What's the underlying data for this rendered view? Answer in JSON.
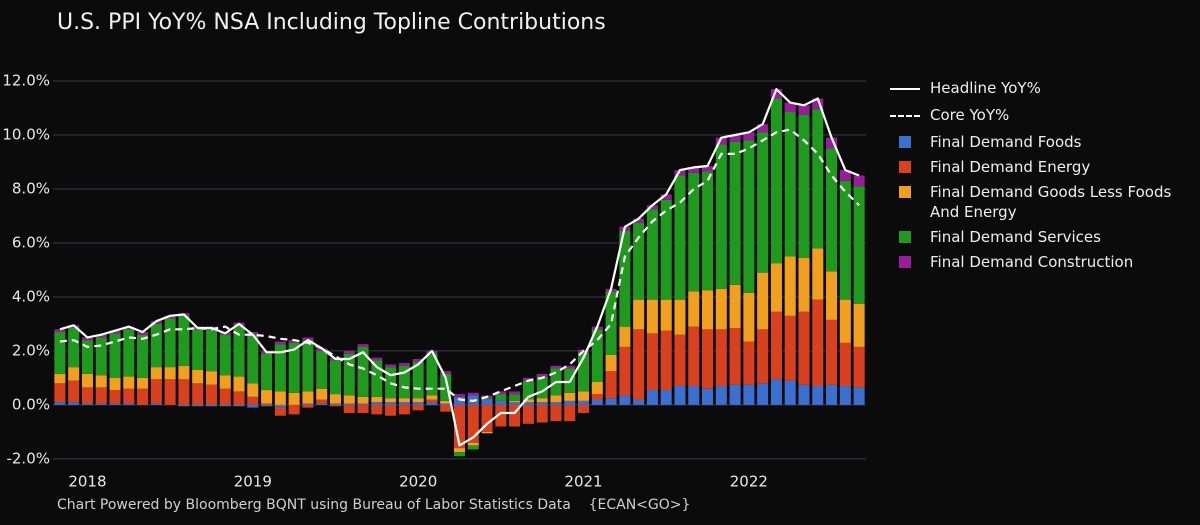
{
  "chart_data": {
    "type": "bar",
    "title": "U.S. PPI YoY% NSA Including Topline Contributions",
    "footer": "Chart Powered by Bloomberg BQNT using Bureau of Labor Statistics Data    {ECAN<GO>}",
    "categories": [
      null,
      null,
      "2018",
      null,
      null,
      null,
      null,
      null,
      null,
      null,
      null,
      null,
      null,
      null,
      "2019",
      null,
      null,
      null,
      null,
      null,
      null,
      null,
      null,
      null,
      null,
      null,
      "2020",
      null,
      null,
      null,
      null,
      null,
      null,
      null,
      null,
      null,
      null,
      null,
      "2021",
      null,
      null,
      null,
      null,
      null,
      null,
      null,
      null,
      null,
      null,
      null,
      "2022",
      null,
      null,
      null,
      null,
      null,
      null,
      null,
      null
    ],
    "ylim": [
      -2.3,
      12.6
    ],
    "yticks": [
      {
        "value": -2,
        "label": "-2.0%"
      },
      {
        "value": 0,
        "label": "0.0%"
      },
      {
        "value": 2,
        "label": "2.0%"
      },
      {
        "value": 4,
        "label": "4.0%"
      },
      {
        "value": 6,
        "label": "6.0%"
      },
      {
        "value": 8,
        "label": "8.0%"
      },
      {
        "value": 10,
        "label": "10.0%"
      },
      {
        "value": 12,
        "label": "12.0%"
      }
    ],
    "grid": true,
    "legend": "right",
    "series": [
      {
        "name": "Headline YoY%",
        "type": "line",
        "color": "#ffffff",
        "dash": false,
        "values": [
          2.8,
          2.95,
          2.5,
          2.6,
          2.75,
          2.9,
          2.7,
          3.1,
          3.3,
          3.35,
          2.85,
          2.85,
          2.65,
          3.0,
          2.6,
          1.95,
          1.95,
          2.05,
          2.4,
          2.1,
          1.7,
          1.7,
          1.95,
          1.4,
          1.1,
          1.2,
          1.5,
          2.0,
          1.0,
          -1.5,
          -1.2,
          -0.7,
          -0.3,
          -0.3,
          0.3,
          0.5,
          0.85,
          0.85,
          1.75,
          2.9,
          4.3,
          6.6,
          6.9,
          7.4,
          7.8,
          8.7,
          8.8,
          8.85,
          9.9,
          10.0,
          10.1,
          10.4,
          11.7,
          11.2,
          11.1,
          11.35,
          9.9,
          8.7,
          8.5
        ]
      },
      {
        "name": "Core YoY%",
        "type": "line",
        "color": "#ffffff",
        "dash": true,
        "values": [
          2.35,
          2.4,
          2.15,
          2.2,
          2.35,
          2.5,
          2.45,
          2.6,
          2.8,
          2.8,
          2.85,
          2.8,
          2.9,
          2.6,
          2.6,
          2.55,
          2.45,
          2.4,
          2.3,
          2.1,
          1.8,
          1.5,
          1.35,
          1.1,
          0.8,
          0.65,
          0.6,
          0.6,
          0.6,
          0.2,
          0.15,
          0.3,
          0.5,
          0.7,
          0.9,
          1.0,
          1.2,
          1.5,
          2.0,
          2.4,
          3.0,
          5.5,
          6.2,
          6.8,
          7.2,
          7.5,
          8.0,
          8.3,
          9.3,
          9.3,
          9.5,
          9.8,
          10.1,
          10.2,
          9.8,
          9.3,
          8.5,
          7.9,
          7.4
        ]
      },
      {
        "name": "Final Demand Foods",
        "type": "bar",
        "color": "#3b6fd0",
        "values": [
          0.1,
          0.1,
          0.05,
          0.05,
          0.05,
          0.05,
          0,
          0.05,
          0,
          -0.05,
          -0.05,
          -0.05,
          -0.05,
          -0.05,
          -0.1,
          -0.05,
          -0.1,
          0,
          0.05,
          0.05,
          0.05,
          0.05,
          0.05,
          0.1,
          0.1,
          0.1,
          0.1,
          0.1,
          0.05,
          0.3,
          0.35,
          0.2,
          0.15,
          0.1,
          0.1,
          0.1,
          0.1,
          0.15,
          0.15,
          0.2,
          0.25,
          0.35,
          0.2,
          0.55,
          0.55,
          0.7,
          0.7,
          0.6,
          0.7,
          0.75,
          0.75,
          0.8,
          0.95,
          0.9,
          0.75,
          0.7,
          0.75,
          0.7,
          0.65
        ]
      },
      {
        "name": "Final Demand Energy",
        "type": "bar",
        "color": "#d9411e",
        "values": [
          0.7,
          0.8,
          0.6,
          0.6,
          0.5,
          0.55,
          0.6,
          0.9,
          0.95,
          0.95,
          0.8,
          0.75,
          0.6,
          0.5,
          0.3,
          0.05,
          -0.3,
          -0.35,
          -0.1,
          0.15,
          -0.05,
          -0.3,
          -0.3,
          -0.35,
          -0.4,
          -0.35,
          -0.2,
          0.1,
          -0.25,
          -1.6,
          -1.4,
          -1.0,
          -0.8,
          -0.8,
          -0.7,
          -0.65,
          -0.6,
          -0.6,
          -0.3,
          0.2,
          1.0,
          1.8,
          2.6,
          2.1,
          2.2,
          1.9,
          2.2,
          2.2,
          2.1,
          2.1,
          1.6,
          2.0,
          2.5,
          2.4,
          2.7,
          3.2,
          2.4,
          1.6,
          1.5
        ]
      },
      {
        "name": "Final Demand Goods Less Foods And Energy",
        "type": "bar",
        "color": "#f0a01e",
        "values": [
          0.35,
          0.5,
          0.5,
          0.45,
          0.45,
          0.45,
          0.4,
          0.45,
          0.45,
          0.5,
          0.5,
          0.5,
          0.5,
          0.55,
          0.5,
          0.5,
          0.5,
          0.45,
          0.45,
          0.4,
          0.35,
          0.3,
          0.25,
          0.2,
          0.15,
          0.15,
          0.15,
          0.15,
          0.1,
          -0.15,
          -0.1,
          -0.05,
          0,
          0.05,
          0.1,
          0.15,
          0.25,
          0.3,
          0.35,
          0.45,
          0.6,
          0.75,
          1.1,
          1.25,
          1.15,
          1.3,
          1.3,
          1.45,
          1.5,
          1.6,
          1.8,
          2.1,
          1.8,
          2.2,
          2.0,
          1.9,
          1.8,
          1.6,
          1.6
        ]
      },
      {
        "name": "Final Demand Services",
        "type": "bar",
        "color": "#1f9a1f",
        "values": [
          1.55,
          1.45,
          1.25,
          1.4,
          1.65,
          1.75,
          1.6,
          1.6,
          1.8,
          1.85,
          1.5,
          1.55,
          1.5,
          1.9,
          1.8,
          1.35,
          1.75,
          1.85,
          1.9,
          1.4,
          1.25,
          1.55,
          1.85,
          1.35,
          1.15,
          1.2,
          1.35,
          1.55,
          1.0,
          -0.15,
          -0.15,
          0.05,
          0.25,
          0.25,
          0.7,
          0.8,
          1.0,
          0.9,
          1.45,
          1.95,
          2.35,
          3.55,
          2.85,
          3.35,
          3.7,
          4.6,
          4.4,
          4.4,
          5.35,
          5.3,
          5.65,
          5.2,
          6.1,
          5.35,
          5.3,
          5.15,
          4.55,
          4.4,
          4.35
        ]
      },
      {
        "name": "Final Demand Construction",
        "type": "bar",
        "color": "#9a1c9a",
        "values": [
          0.1,
          0.1,
          0.1,
          0.1,
          0.1,
          0.1,
          0.1,
          0.1,
          0.1,
          0.1,
          0.1,
          0.1,
          0.1,
          0.1,
          0.1,
          0.1,
          0.1,
          0.1,
          0.1,
          0.1,
          0.1,
          0.1,
          0.1,
          0.1,
          0.1,
          0.1,
          0.1,
          0.1,
          0.1,
          0.1,
          0.1,
          0.1,
          0.1,
          0.1,
          0.1,
          0.1,
          0.1,
          0.1,
          0.1,
          0.1,
          0.1,
          0.15,
          0.15,
          0.15,
          0.2,
          0.2,
          0.2,
          0.2,
          0.25,
          0.25,
          0.3,
          0.3,
          0.35,
          0.35,
          0.35,
          0.4,
          0.4,
          0.4,
          0.4
        ]
      }
    ]
  }
}
